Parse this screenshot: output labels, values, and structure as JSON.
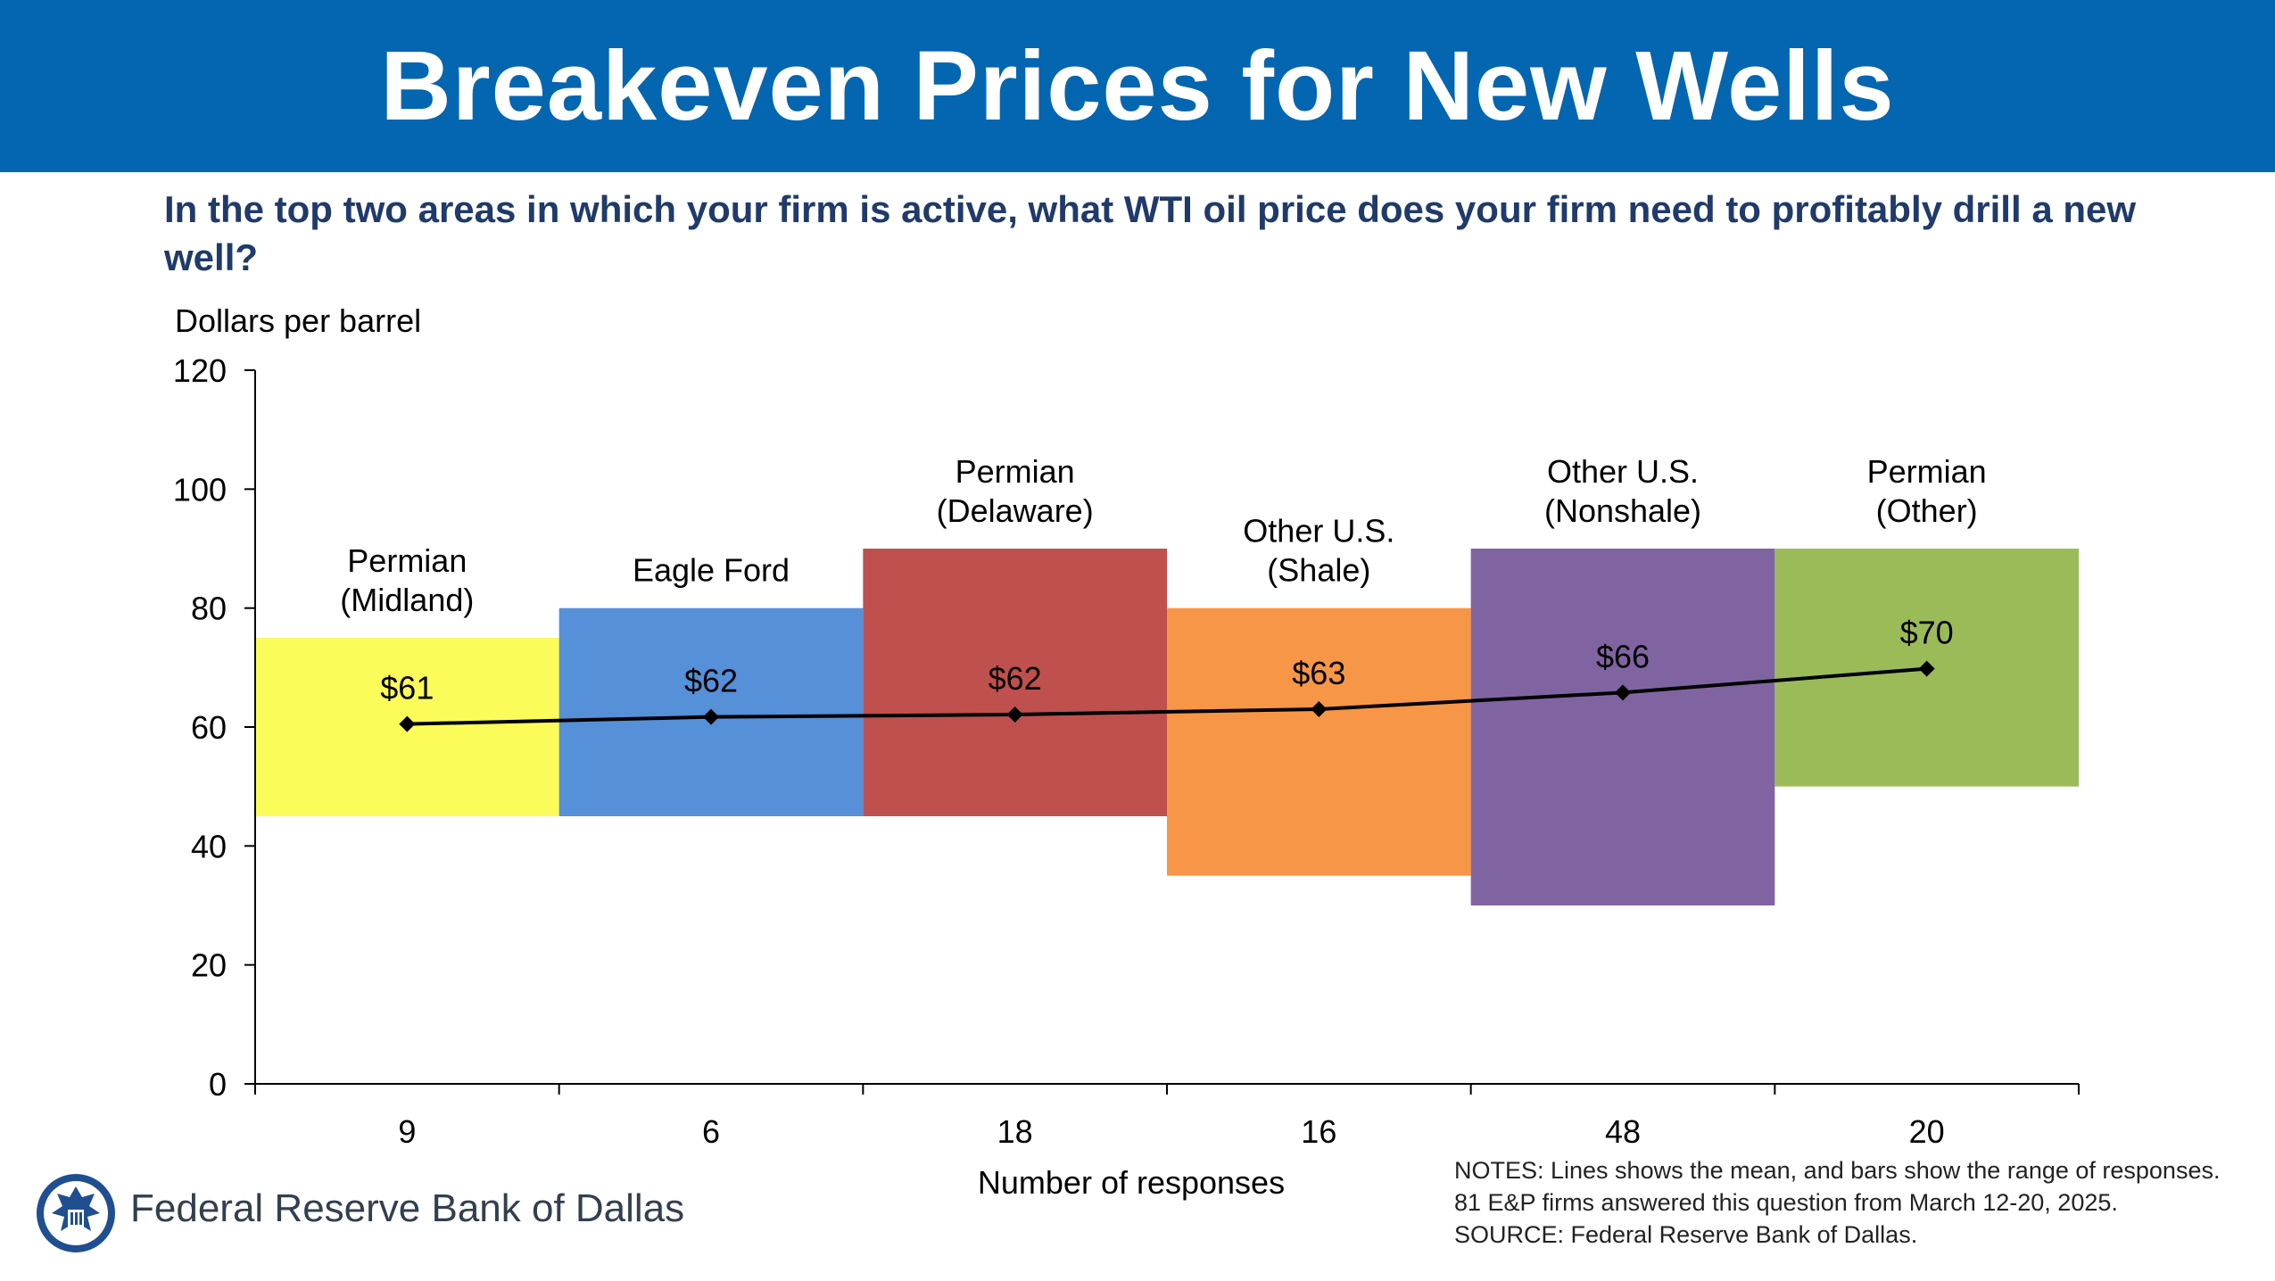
{
  "banner": {
    "title": "Breakeven Prices for New Wells",
    "color": "#0466b0"
  },
  "question": "In the top two areas in which your firm is active, what WTI oil price does your firm need to profitably drill a new well?",
  "chart_data": {
    "type": "bar",
    "ylabel": "Dollars per barrel",
    "xlabel": "Number of responses",
    "ylim": [
      0,
      120
    ],
    "yticks": [
      0,
      20,
      40,
      60,
      80,
      100,
      120
    ],
    "categories": [
      {
        "name_lines": [
          "Permian",
          "(Midland)"
        ],
        "responses": "9",
        "range_low": 45,
        "range_high": 75,
        "mean": 60.5,
        "mean_label": "$61",
        "color": "#fbfb5a"
      },
      {
        "name_lines": [
          "Eagle Ford"
        ],
        "responses": "6",
        "range_low": 45,
        "range_high": 80,
        "mean": 61.7,
        "mean_label": "$62",
        "color": "#5590d8"
      },
      {
        "name_lines": [
          "Permian",
          "(Delaware)"
        ],
        "responses": "18",
        "range_low": 45,
        "range_high": 90,
        "mean": 62.1,
        "mean_label": "$62",
        "color": "#c0504d"
      },
      {
        "name_lines": [
          "Other U.S.",
          "(Shale)"
        ],
        "responses": "16",
        "range_low": 35,
        "range_high": 80,
        "mean": 63,
        "mean_label": "$63",
        "color": "#f79646"
      },
      {
        "name_lines": [
          "Other U.S.",
          "(Nonshale)"
        ],
        "responses": "48",
        "range_low": 30,
        "range_high": 90,
        "mean": 65.8,
        "mean_label": "$66",
        "color": "#8064a2"
      },
      {
        "name_lines": [
          "Permian",
          "(Other)"
        ],
        "responses": "20",
        "range_low": 50,
        "range_high": 90,
        "mean": 69.8,
        "mean_label": "$70",
        "color": "#9bbb59"
      }
    ],
    "mean_line_color": "#000000"
  },
  "footer": {
    "bank_name": "Federal Reserve Bank of Dallas",
    "notes": [
      "NOTES: Lines shows the mean, and bars show the range of responses.",
      "81 E&P firms answered this question from March 12-20, 2025.",
      "SOURCE: Federal Reserve Bank of Dallas."
    ]
  }
}
